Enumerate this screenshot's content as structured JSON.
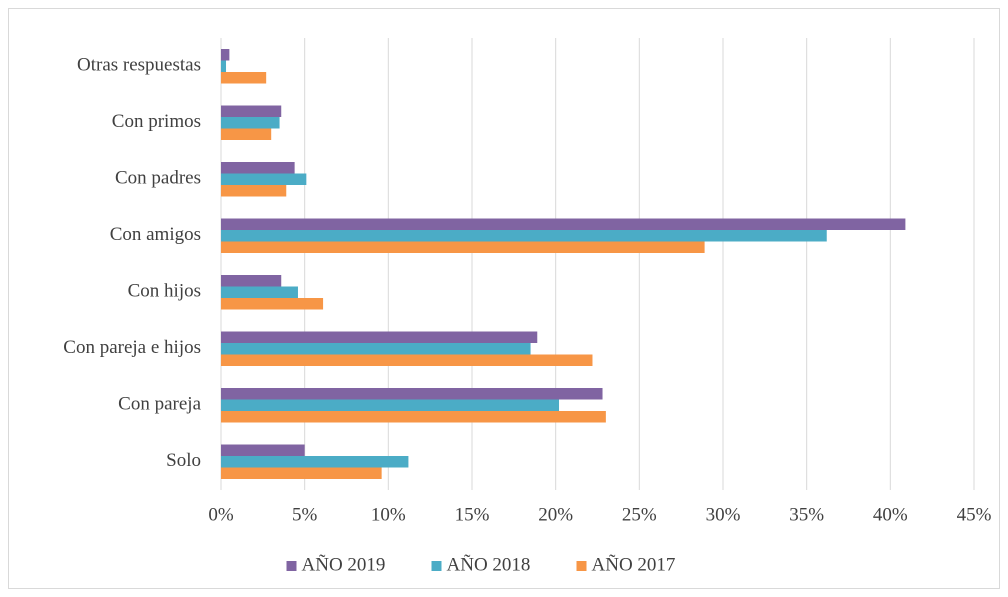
{
  "chart_data": {
    "type": "bar",
    "orientation": "horizontal",
    "categories": [
      "Otras respuestas",
      "Con primos",
      "Con padres",
      "Con amigos",
      "Con hijos",
      "Con pareja e hijos",
      "Con  pareja",
      "Solo"
    ],
    "series": [
      {
        "name": "AÑO 2019",
        "color": "#8064a2",
        "values": [
          0.5,
          3.6,
          4.4,
          40.9,
          3.6,
          18.9,
          22.8,
          5.0
        ]
      },
      {
        "name": "AÑO 2018",
        "color": "#4bacc6",
        "values": [
          0.3,
          3.5,
          5.1,
          36.2,
          4.6,
          18.5,
          20.2,
          11.2
        ]
      },
      {
        "name": "AÑO 2017",
        "color": "#f79646",
        "values": [
          2.7,
          3.0,
          3.9,
          28.9,
          6.1,
          22.2,
          23.0,
          9.6
        ]
      }
    ],
    "xlim": [
      0,
      45
    ],
    "xticks": [
      {
        "value": 0,
        "label": "0%"
      },
      {
        "value": 5,
        "label": "5%"
      },
      {
        "value": 10,
        "label": "10%"
      },
      {
        "value": 15,
        "label": "15%"
      },
      {
        "value": 20,
        "label": "20%"
      },
      {
        "value": 25,
        "label": "25%"
      },
      {
        "value": 30,
        "label": "30%"
      },
      {
        "value": 35,
        "label": "35%"
      },
      {
        "value": 40,
        "label": "40%"
      },
      {
        "value": 45,
        "label": "45%"
      }
    ],
    "grid": true,
    "legend": "bottom"
  }
}
